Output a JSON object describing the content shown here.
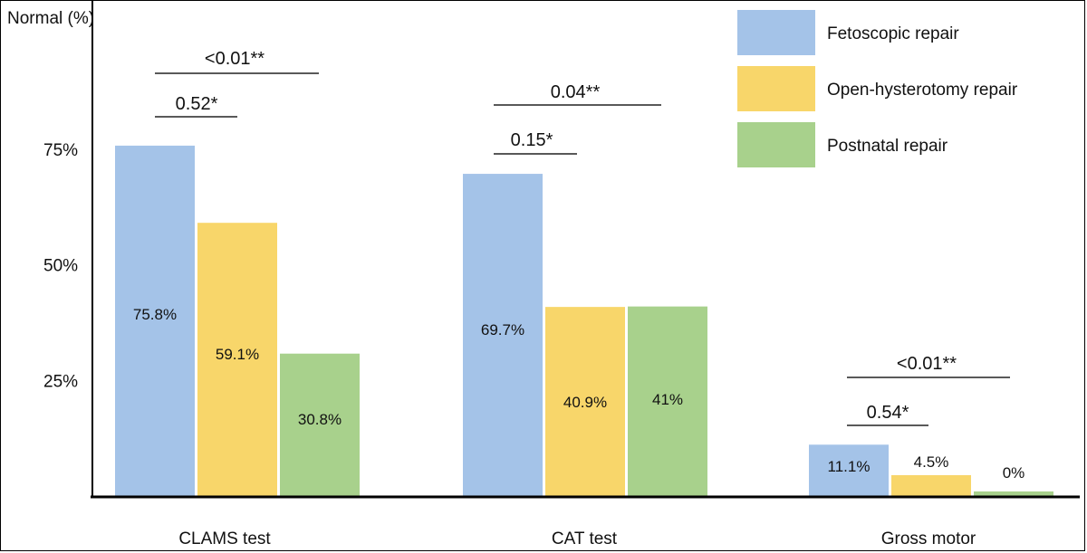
{
  "chart_data": {
    "type": "bar",
    "ylabel": "Normal (%)",
    "ylim": [
      0,
      100
    ],
    "yticks": [
      "25%",
      "50%",
      "75%"
    ],
    "ytick_values": [
      25,
      50,
      75
    ],
    "categories": [
      "CLAMS test",
      "CAT test",
      "Gross motor"
    ],
    "series": [
      {
        "name": "Fetoscopic repair",
        "color": "#a4c3e8",
        "values": [
          75.8,
          69.7,
          11.1
        ],
        "labels": [
          "75.8%",
          "69.7%",
          "11.1%"
        ]
      },
      {
        "name": "Open-hysterotomy repair",
        "color": "#f8d66a",
        "values": [
          59.1,
          40.9,
          4.5
        ],
        "labels": [
          "59.1%",
          "40.9%",
          "4.5%"
        ]
      },
      {
        "name": "Postnatal repair",
        "color": "#a8d18c",
        "values": [
          30.8,
          41,
          0
        ],
        "labels": [
          "30.8%",
          "41%",
          "0%"
        ]
      }
    ],
    "annotations": [
      {
        "category": 0,
        "text": "0.52*",
        "span": "fetoscopic-vs-open"
      },
      {
        "category": 0,
        "text": "<0.01**",
        "span": "fetoscopic-vs-postnatal"
      },
      {
        "category": 1,
        "text": "0.15*",
        "span": "fetoscopic-vs-open"
      },
      {
        "category": 1,
        "text": "0.04**",
        "span": "fetoscopic-vs-postnatal"
      },
      {
        "category": 2,
        "text": "0.54*",
        "span": "fetoscopic-vs-open"
      },
      {
        "category": 2,
        "text": "<0.01**",
        "span": "fetoscopic-vs-postnatal"
      }
    ],
    "legend_position": "top-right",
    "grid": false
  }
}
